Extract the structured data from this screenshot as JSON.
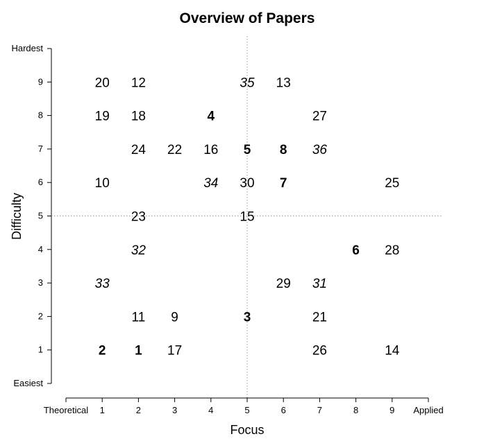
{
  "chart_data": {
    "type": "scatter",
    "title": "Overview of Papers",
    "xlabel": "Focus",
    "ylabel": "Difficulty",
    "xlim": [
      0,
      10
    ],
    "ylim": [
      0,
      10
    ],
    "x_ticks": [
      {
        "value": 0,
        "label": "Theoretical"
      },
      {
        "value": 1,
        "label": "1"
      },
      {
        "value": 2,
        "label": "2"
      },
      {
        "value": 3,
        "label": "3"
      },
      {
        "value": 4,
        "label": "4"
      },
      {
        "value": 5,
        "label": "5"
      },
      {
        "value": 6,
        "label": "6"
      },
      {
        "value": 7,
        "label": "7"
      },
      {
        "value": 8,
        "label": "8"
      },
      {
        "value": 9,
        "label": "9"
      },
      {
        "value": 10,
        "label": "Applied"
      }
    ],
    "y_ticks": [
      {
        "value": 0,
        "label": "Easiest"
      },
      {
        "value": 1,
        "label": "1"
      },
      {
        "value": 2,
        "label": "2"
      },
      {
        "value": 3,
        "label": "3"
      },
      {
        "value": 4,
        "label": "4"
      },
      {
        "value": 5,
        "label": "5"
      },
      {
        "value": 6,
        "label": "6"
      },
      {
        "value": 7,
        "label": "7"
      },
      {
        "value": 8,
        "label": "8"
      },
      {
        "value": 9,
        "label": "9"
      },
      {
        "value": 10,
        "label": "Hardest"
      }
    ],
    "reference_lines": {
      "x": 5,
      "y": 5,
      "style": "dotted"
    },
    "grid": false,
    "legend": "none",
    "points": [
      {
        "label": "20",
        "x": 1,
        "y": 9,
        "style": "normal"
      },
      {
        "label": "12",
        "x": 2,
        "y": 9,
        "style": "normal"
      },
      {
        "label": "35",
        "x": 5,
        "y": 9,
        "style": "italic"
      },
      {
        "label": "13",
        "x": 6,
        "y": 9,
        "style": "normal"
      },
      {
        "label": "19",
        "x": 1,
        "y": 8,
        "style": "normal"
      },
      {
        "label": "18",
        "x": 2,
        "y": 8,
        "style": "normal"
      },
      {
        "label": "4",
        "x": 4,
        "y": 8,
        "style": "bold"
      },
      {
        "label": "27",
        "x": 7,
        "y": 8,
        "style": "normal"
      },
      {
        "label": "24",
        "x": 2,
        "y": 7,
        "style": "normal"
      },
      {
        "label": "22",
        "x": 3,
        "y": 7,
        "style": "normal"
      },
      {
        "label": "16",
        "x": 4,
        "y": 7,
        "style": "normal"
      },
      {
        "label": "5",
        "x": 5,
        "y": 7,
        "style": "bold"
      },
      {
        "label": "8",
        "x": 6,
        "y": 7,
        "style": "bold"
      },
      {
        "label": "36",
        "x": 7,
        "y": 7,
        "style": "italic"
      },
      {
        "label": "10",
        "x": 1,
        "y": 6,
        "style": "normal"
      },
      {
        "label": "34",
        "x": 4,
        "y": 6,
        "style": "italic"
      },
      {
        "label": "30",
        "x": 5,
        "y": 6,
        "style": "normal"
      },
      {
        "label": "7",
        "x": 6,
        "y": 6,
        "style": "bold"
      },
      {
        "label": "25",
        "x": 9,
        "y": 6,
        "style": "normal"
      },
      {
        "label": "23",
        "x": 2,
        "y": 5,
        "style": "normal"
      },
      {
        "label": "15",
        "x": 5,
        "y": 5,
        "style": "normal"
      },
      {
        "label": "32",
        "x": 2,
        "y": 4,
        "style": "italic"
      },
      {
        "label": "6",
        "x": 8,
        "y": 4,
        "style": "bold"
      },
      {
        "label": "28",
        "x": 9,
        "y": 4,
        "style": "normal"
      },
      {
        "label": "33",
        "x": 1,
        "y": 3,
        "style": "italic"
      },
      {
        "label": "29",
        "x": 6,
        "y": 3,
        "style": "normal"
      },
      {
        "label": "31",
        "x": 7,
        "y": 3,
        "style": "italic"
      },
      {
        "label": "11",
        "x": 2,
        "y": 2,
        "style": "normal"
      },
      {
        "label": "9",
        "x": 3,
        "y": 2,
        "style": "normal"
      },
      {
        "label": "3",
        "x": 5,
        "y": 2,
        "style": "bold"
      },
      {
        "label": "21",
        "x": 7,
        "y": 2,
        "style": "normal"
      },
      {
        "label": "2",
        "x": 1,
        "y": 1,
        "style": "bold"
      },
      {
        "label": "1",
        "x": 2,
        "y": 1,
        "style": "bold"
      },
      {
        "label": "17",
        "x": 3,
        "y": 1,
        "style": "normal"
      },
      {
        "label": "26",
        "x": 7,
        "y": 1,
        "style": "normal"
      },
      {
        "label": "14",
        "x": 9,
        "y": 1,
        "style": "normal"
      }
    ]
  }
}
